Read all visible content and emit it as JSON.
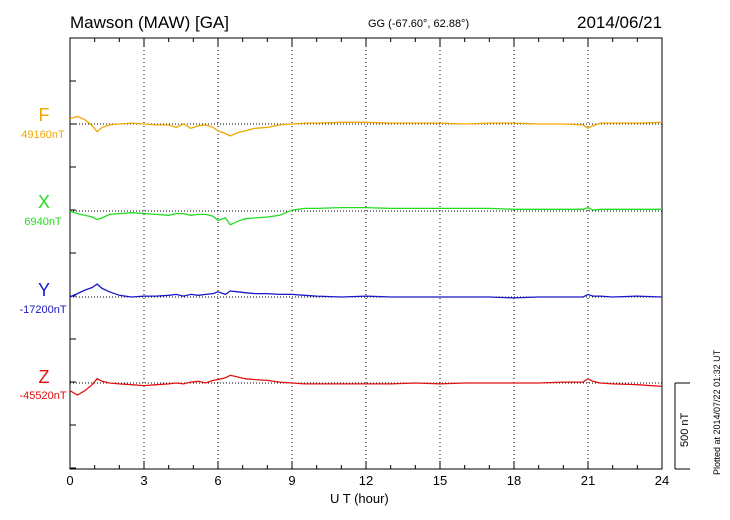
{
  "header": {
    "station": "Mawson (MAW)  [GA]",
    "coords": "GG (-67.60°,  62.88°)",
    "date": "2014/06/21"
  },
  "footer": {
    "xaxis_title": "U T (hour)",
    "plotted": "Plotted at 2014/07/22 01:32 UT",
    "scale_label": "500 nT"
  },
  "colors": {
    "F": "#f0a800",
    "X": "#22dd22",
    "Y": "#1818c8",
    "Z": "#e01010"
  },
  "chart_data": {
    "type": "line",
    "title": "Mawson (MAW)  [GA]",
    "xlabel": "U T (hour)",
    "xlim": [
      0,
      24
    ],
    "xticks": [
      0,
      3,
      6,
      9,
      12,
      15,
      18,
      21,
      24
    ],
    "grid": "vertical dotted lines every 3 hours; dotted baseline per component",
    "scale_nT": 500,
    "series": [
      {
        "name": "F",
        "baseline": "49160nT",
        "x": [
          0,
          0.3,
          0.6,
          0.9,
          1.1,
          1.3,
          1.6,
          2,
          2.5,
          3,
          3.5,
          4,
          4.3,
          4.6,
          4.9,
          5.2,
          5.5,
          5.8,
          6.0,
          6.3,
          6.5,
          6.8,
          7.1,
          7.5,
          8,
          8.5,
          9,
          9.5,
          10,
          11,
          12,
          13,
          14,
          15,
          16,
          17,
          18,
          19,
          20,
          20.8,
          21,
          21.2,
          21.5,
          22,
          23,
          24
        ],
        "values": [
          30,
          45,
          25,
          -10,
          -45,
          -20,
          -5,
          0,
          5,
          0,
          -5,
          -5,
          -20,
          0,
          -25,
          -10,
          -5,
          -20,
          -40,
          -55,
          -70,
          -50,
          -40,
          -25,
          -20,
          -5,
          0,
          5,
          5,
          10,
          10,
          5,
          5,
          5,
          0,
          5,
          5,
          0,
          0,
          -5,
          -25,
          -10,
          5,
          5,
          5,
          10
        ]
      },
      {
        "name": "X",
        "baseline": "6940nT",
        "x": [
          0,
          0.3,
          0.6,
          0.9,
          1.1,
          1.3,
          1.6,
          2,
          2.5,
          3,
          3.5,
          4,
          4.3,
          4.6,
          4.9,
          5.2,
          5.5,
          5.8,
          6.0,
          6.3,
          6.5,
          6.8,
          7.1,
          7.5,
          8,
          8.5,
          9,
          9.5,
          10,
          11,
          12,
          13,
          14,
          15,
          16,
          17,
          18,
          19,
          20,
          20.8,
          21,
          21.2,
          21.5,
          22,
          23,
          24
        ],
        "values": [
          0,
          -15,
          -25,
          -35,
          -50,
          -40,
          -20,
          -15,
          -10,
          -15,
          -20,
          -25,
          -15,
          -15,
          -25,
          -20,
          -20,
          -30,
          -55,
          -40,
          -80,
          -60,
          -45,
          -40,
          -35,
          -25,
          5,
          15,
          15,
          20,
          20,
          15,
          15,
          15,
          15,
          15,
          10,
          10,
          10,
          10,
          20,
          5,
          10,
          10,
          10,
          10
        ]
      },
      {
        "name": "Y",
        "baseline": "-17200nT",
        "x": [
          0,
          0.3,
          0.6,
          0.9,
          1.1,
          1.3,
          1.6,
          2,
          2.5,
          3,
          3.5,
          4,
          4.3,
          4.6,
          4.9,
          5.2,
          5.5,
          5.8,
          6.0,
          6.3,
          6.5,
          6.8,
          7.1,
          7.5,
          8,
          8.5,
          9,
          9.5,
          10,
          11,
          12,
          13,
          14,
          15,
          16,
          17,
          18,
          19,
          20,
          20.8,
          21,
          21.2,
          21.5,
          22,
          23,
          24
        ],
        "values": [
          0,
          20,
          40,
          55,
          75,
          50,
          30,
          10,
          0,
          5,
          5,
          10,
          15,
          5,
          15,
          10,
          15,
          20,
          30,
          15,
          35,
          30,
          25,
          20,
          20,
          15,
          15,
          10,
          5,
          0,
          5,
          0,
          0,
          0,
          0,
          0,
          -5,
          0,
          0,
          0,
          15,
          5,
          5,
          0,
          5,
          0
        ]
      },
      {
        "name": "Z",
        "baseline": "-45520nT",
        "x": [
          0,
          0.3,
          0.6,
          0.9,
          1.1,
          1.3,
          1.6,
          2,
          2.5,
          3,
          3.5,
          4,
          4.3,
          4.6,
          4.9,
          5.2,
          5.5,
          5.8,
          6.0,
          6.3,
          6.5,
          6.8,
          7.1,
          7.5,
          8,
          8.5,
          9,
          9.5,
          10,
          11,
          12,
          13,
          14,
          15,
          16,
          17,
          18,
          19,
          20,
          20.8,
          21,
          21.2,
          21.5,
          22,
          23,
          24
        ],
        "values": [
          -45,
          -70,
          -45,
          -10,
          25,
          10,
          0,
          -5,
          -10,
          -15,
          -10,
          -5,
          0,
          -5,
          5,
          10,
          0,
          15,
          20,
          30,
          45,
          35,
          25,
          20,
          15,
          5,
          0,
          -5,
          -5,
          -5,
          -5,
          -5,
          0,
          -5,
          0,
          0,
          0,
          0,
          5,
          5,
          25,
          10,
          0,
          -5,
          -10,
          -20
        ]
      }
    ]
  }
}
